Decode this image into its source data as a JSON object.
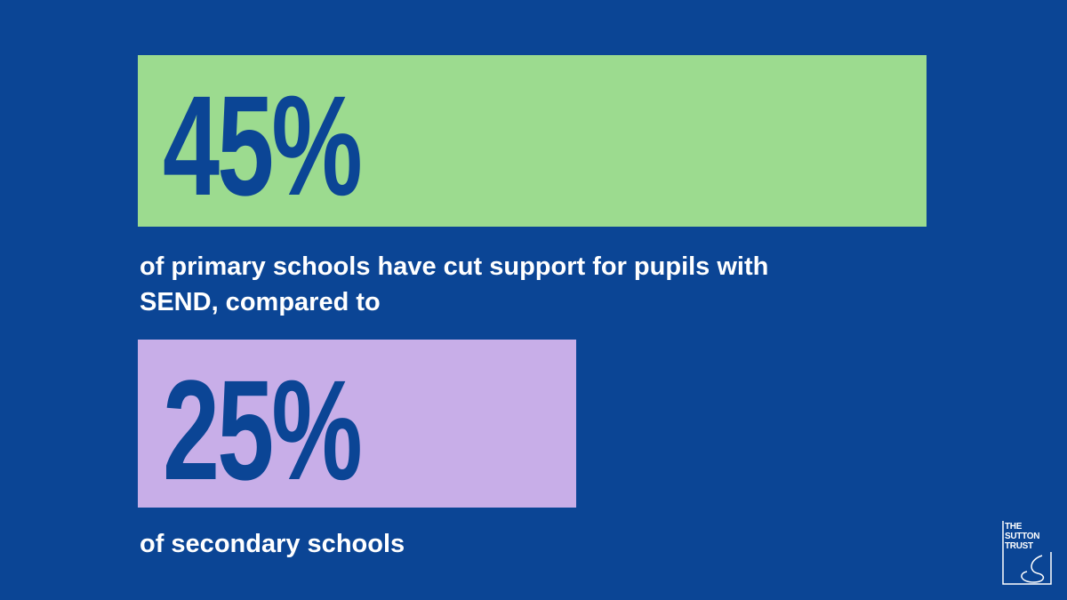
{
  "chart_data": {
    "type": "bar",
    "categories": [
      "of primary schools have cut support for pupils with SEND, compared to",
      "of secondary schools"
    ],
    "values": [
      45,
      25
    ],
    "value_labels": [
      "45%",
      "25%"
    ],
    "colors": [
      "#9cdb8f",
      "#c8aee8"
    ]
  },
  "logo": [
    "THE",
    "SUTTON",
    "TRUST"
  ]
}
